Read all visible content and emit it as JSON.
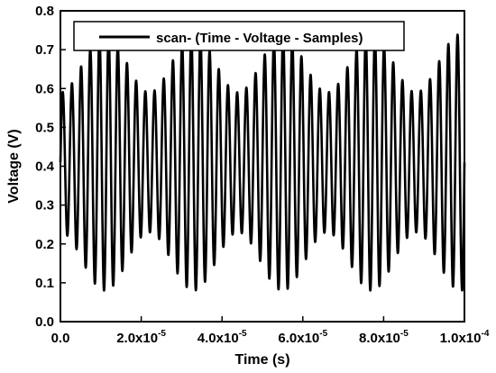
{
  "chart_data": {
    "type": "line",
    "title": "",
    "xlabel": "Time (s)",
    "ylabel": "Voltage (V)",
    "xlim": [
      0,
      0.0001
    ],
    "ylim": [
      0,
      0.8
    ],
    "x_ticks": [
      {
        "value": 0,
        "label": "0.0"
      },
      {
        "value": 2e-05,
        "label": "2.0x10",
        "exp": "-5"
      },
      {
        "value": 4e-05,
        "label": "4.0x10",
        "exp": "-5"
      },
      {
        "value": 6e-05,
        "label": "6.0x10",
        "exp": "-5"
      },
      {
        "value": 8e-05,
        "label": "8.0x10",
        "exp": "-5"
      },
      {
        "value": 0.0001,
        "label": "1.0x10",
        "exp": "-4"
      }
    ],
    "y_ticks": [
      {
        "value": 0,
        "label": "0.0"
      },
      {
        "value": 0.1,
        "label": "0.1"
      },
      {
        "value": 0.2,
        "label": "0.2"
      },
      {
        "value": 0.3,
        "label": "0.3"
      },
      {
        "value": 0.4,
        "label": "0.4"
      },
      {
        "value": 0.5,
        "label": "0.5"
      },
      {
        "value": 0.6,
        "label": "0.6"
      },
      {
        "value": 0.7,
        "label": "0.7"
      },
      {
        "value": 0.8,
        "label": "0.8"
      }
    ],
    "legend": {
      "position": "top",
      "label": "scan- (Time -  Voltage - Samples)"
    },
    "grid": false,
    "series": [
      {
        "name": "scan- (Time -  Voltage - Samples)",
        "color": "#000000",
        "signal": {
          "offset": 0.41,
          "carrier_cycles": 44,
          "amp_mean": 0.255,
          "amp_mod": 0.075,
          "mod_period": 2.2e-05,
          "mod_phase_time": 1.1e-05,
          "x_start": 0,
          "x_end": 0.0001
        }
      }
    ]
  }
}
